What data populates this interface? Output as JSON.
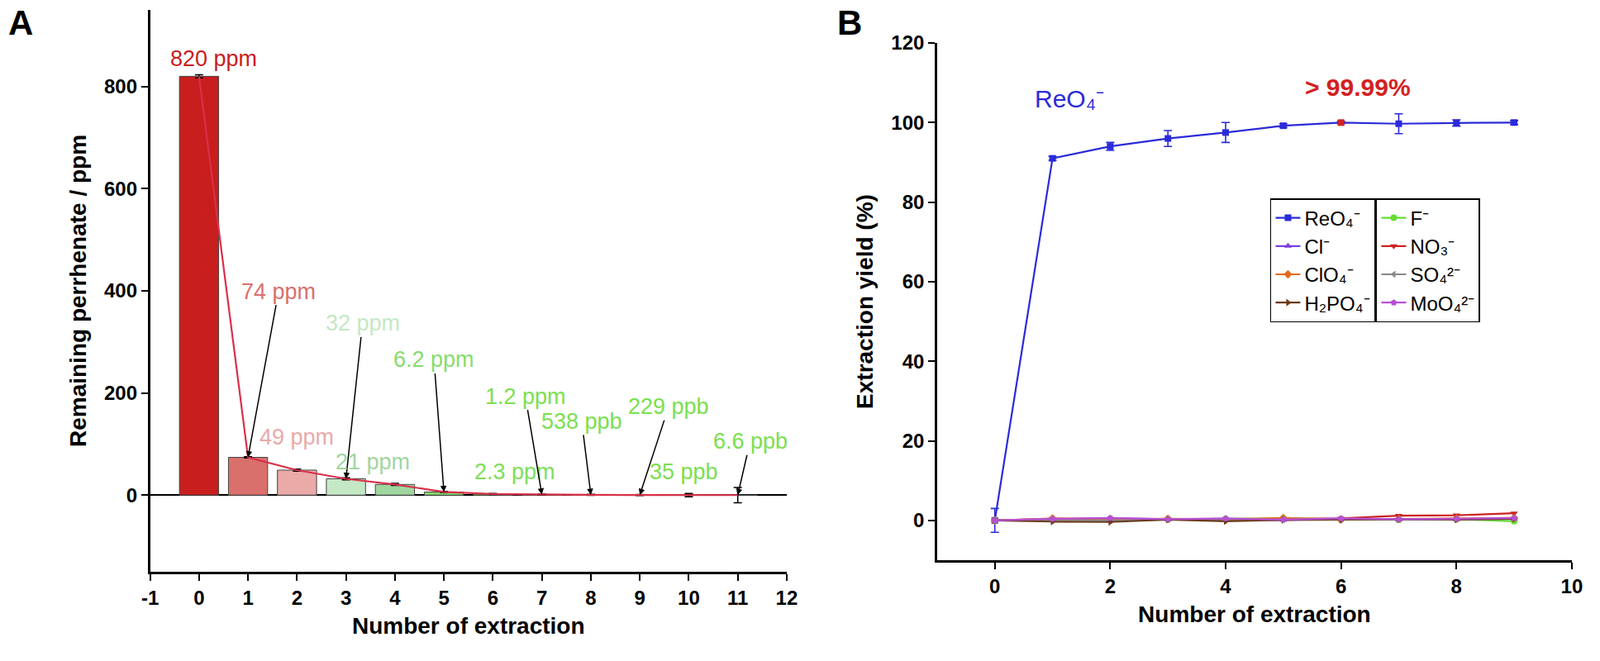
{
  "chart_data": [
    {
      "type": "bar",
      "title": "A",
      "xlabel": "Number of extraction",
      "ylabel": "Remaining perrhenate / ppm",
      "x": [
        0,
        1,
        2,
        3,
        4,
        5,
        6,
        7,
        8,
        9,
        10,
        11
      ],
      "xlim": [
        -1,
        12
      ],
      "xticks": [
        -1,
        0,
        1,
        2,
        3,
        4,
        5,
        6,
        7,
        8,
        9,
        10,
        11,
        12
      ],
      "ylim": [
        -150,
        950
      ],
      "yticks": [
        0,
        200,
        400,
        600,
        800
      ],
      "grid": false,
      "data_labels": true,
      "series": [
        {
          "type": "bar",
          "values": [
            820,
            74,
            49,
            32,
            21,
            6.2,
            2.3,
            1.2,
            0.538,
            0.229,
            0.035,
            0.0066
          ],
          "errors": [
            3,
            1,
            2,
            2,
            2,
            1,
            1,
            1,
            1,
            1,
            3,
            15
          ],
          "value_labels": [
            "820 ppm",
            "74 ppm",
            "49 ppm",
            "32 ppm",
            "21 ppm",
            "6.2 ppm",
            "2.3 ppm",
            "1.2 ppm",
            "538 ppb",
            "229 ppb",
            "35 ppb",
            "6.6 ppb"
          ],
          "colors": [
            "#c81e1e",
            "#d9706c",
            "#e9aaa8",
            "#c4e8c4",
            "#9fd69f",
            "#86dc6e",
            "#7ddf58",
            "#7ae04f",
            "#7ae04f",
            "#7ae04f",
            "#7ae04f",
            "#7ae04f"
          ]
        },
        {
          "type": "line",
          "values": [
            820,
            74,
            49,
            32,
            21,
            6.2,
            2.3,
            1.2,
            0.538,
            0.229,
            0.035,
            0.0066
          ],
          "color": "#d9304a"
        }
      ]
    },
    {
      "type": "line",
      "title": "B",
      "xlabel": "Number of extraction",
      "ylabel": "Extraction yield (%)",
      "x": [
        0,
        1,
        2,
        3,
        4,
        5,
        6,
        7,
        8,
        9
      ],
      "xlim": [
        -1,
        10
      ],
      "xticks": [
        0,
        2,
        4,
        6,
        8,
        10
      ],
      "ylim": [
        -10,
        120
      ],
      "yticks": [
        0,
        20,
        40,
        60,
        80,
        100,
        120
      ],
      "grid": false,
      "legend": "right",
      "annotations": [
        {
          "text": "ReO₄⁻",
          "x": 1.3,
          "y": 106,
          "color": "#2b2bd9"
        },
        {
          "text": "> 99.99%",
          "x": 6,
          "y": 99.99,
          "color": "#d42020"
        }
      ],
      "series": [
        {
          "name": "ReO₄⁻",
          "color": "#2b2bd9",
          "marker": "square",
          "colors": [
            "#2b2bd9",
            "#2b2bd9",
            "#2b2bd9",
            "#2b2bd9",
            "#2b2bd9",
            "#2b2bd9",
            "#d42020",
            "#2b2bd9",
            "#2b2bd9",
            "#2b2bd9"
          ],
          "values": [
            0,
            91,
            94,
            96,
            97.5,
            99.2,
            99.99,
            99.7,
            99.9,
            100
          ],
          "errors": [
            3,
            0.5,
            1,
            2,
            2.5,
            0.5,
            0.3,
            2.5,
            0.8,
            0.5
          ]
        },
        {
          "name": "F⁻",
          "color": "#66dd33",
          "marker": "circle",
          "values": [
            0,
            0.3,
            0.4,
            0.3,
            0.4,
            0.5,
            0.3,
            0.2,
            0.3,
            -0.2
          ]
        },
        {
          "name": "Cl⁻",
          "color": "#7b3fe0",
          "marker": "triangle-up",
          "values": [
            0,
            0.2,
            0.5,
            0.3,
            0.2,
            0.1,
            0.4,
            0.2,
            0.3,
            0.4
          ]
        },
        {
          "name": "NO₃⁻",
          "color": "#cc2222",
          "marker": "triangle-down",
          "values": [
            0,
            0.4,
            0.2,
            0.3,
            0.2,
            0.4,
            0.5,
            1.2,
            1.3,
            1.8
          ]
        },
        {
          "name": "ClO₄⁻",
          "color": "#e66b1a",
          "marker": "diamond",
          "values": [
            0,
            0.5,
            0.3,
            0.4,
            0.3,
            0.6,
            0.2,
            0.4,
            0.5,
            0.6
          ]
        },
        {
          "name": "SO₄²⁻",
          "color": "#888888",
          "marker": "triangle-left",
          "values": [
            0,
            0.1,
            0,
            0.2,
            0.1,
            0.2,
            0.3,
            0.2,
            0.4,
            0.5
          ]
        },
        {
          "name": "H₂PO₄⁻",
          "color": "#6b3a1a",
          "marker": "triangle-right",
          "values": [
            0,
            -0.3,
            -0.4,
            0.2,
            -0.2,
            0.1,
            0.2,
            0.3,
            0.2,
            0.4
          ]
        },
        {
          "name": "MoO₄²⁻",
          "color": "#b84fd6",
          "marker": "pentagon",
          "values": [
            0,
            0.4,
            0.6,
            0.3,
            0.5,
            0.2,
            0.5,
            0.3,
            0.4,
            0.6
          ]
        }
      ]
    }
  ]
}
